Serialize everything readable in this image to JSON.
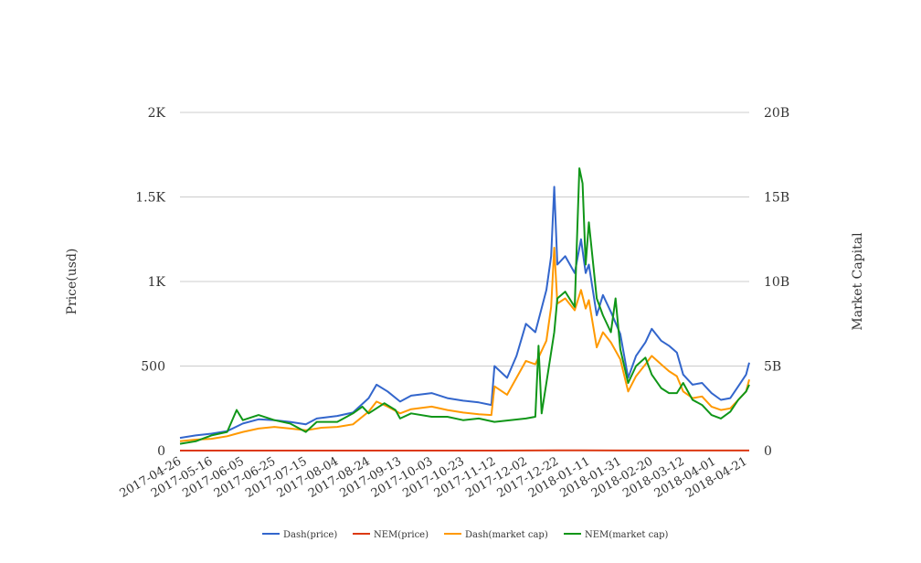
{
  "chart_data": {
    "type": "line",
    "title": "",
    "y_left_label": "Price(usd)",
    "y_right_label": "Market Capital",
    "y_left_range": [
      0,
      2000
    ],
    "y_left_ticks": [
      0,
      500,
      1000,
      1500,
      2000
    ],
    "y_left_tick_labels": [
      "0",
      "500",
      "1K",
      "1.5K",
      "2K"
    ],
    "y_right_range": [
      0,
      20000000000
    ],
    "y_right_ticks": [
      0,
      5000000000,
      10000000000,
      15000000000,
      20000000000
    ],
    "y_right_tick_labels": [
      "0",
      "5B",
      "10B",
      "15B",
      "20B"
    ],
    "x_range": [
      "2017-04-26",
      "2018-04-23"
    ],
    "x_tick_labels": [
      "2017-04-26",
      "2017-05-16",
      "2017-06-05",
      "2017-06-25",
      "2017-07-15",
      "2017-08-04",
      "2017-08-24",
      "2017-09-13",
      "2017-10-03",
      "2017-10-23",
      "2017-11-12",
      "2017-12-02",
      "2017-12-22",
      "2018-01-11",
      "2018-01-31",
      "2018-02-20",
      "2018-03-12",
      "2018-04-01",
      "2018-04-21"
    ],
    "grid": true,
    "legend_position": "bottom",
    "series": [
      {
        "name": "Dash(price)",
        "axis": "left",
        "color": "#3366cc",
        "points": [
          [
            "2017-04-26",
            75
          ],
          [
            "2017-05-06",
            90
          ],
          [
            "2017-05-16",
            100
          ],
          [
            "2017-05-26",
            115
          ],
          [
            "2017-06-05",
            160
          ],
          [
            "2017-06-15",
            185
          ],
          [
            "2017-06-25",
            180
          ],
          [
            "2017-07-05",
            170
          ],
          [
            "2017-07-15",
            155
          ],
          [
            "2017-07-22",
            190
          ],
          [
            "2017-08-04",
            205
          ],
          [
            "2017-08-14",
            225
          ],
          [
            "2017-08-24",
            310
          ],
          [
            "2017-08-29",
            390
          ],
          [
            "2017-09-05",
            350
          ],
          [
            "2017-09-13",
            290
          ],
          [
            "2017-09-20",
            325
          ],
          [
            "2017-10-03",
            340
          ],
          [
            "2017-10-13",
            310
          ],
          [
            "2017-10-23",
            295
          ],
          [
            "2017-11-02",
            285
          ],
          [
            "2017-11-10",
            270
          ],
          [
            "2017-11-12",
            500
          ],
          [
            "2017-11-20",
            430
          ],
          [
            "2017-11-26",
            560
          ],
          [
            "2017-12-02",
            750
          ],
          [
            "2017-12-08",
            700
          ],
          [
            "2017-12-15",
            950
          ],
          [
            "2017-12-18",
            1150
          ],
          [
            "2017-12-20",
            1560
          ],
          [
            "2017-12-22",
            1100
          ],
          [
            "2017-12-27",
            1150
          ],
          [
            "2018-01-02",
            1050
          ],
          [
            "2018-01-06",
            1250
          ],
          [
            "2018-01-09",
            1050
          ],
          [
            "2018-01-11",
            1100
          ],
          [
            "2018-01-16",
            800
          ],
          [
            "2018-01-20",
            920
          ],
          [
            "2018-01-25",
            820
          ],
          [
            "2018-01-31",
            690
          ],
          [
            "2018-02-05",
            430
          ],
          [
            "2018-02-10",
            560
          ],
          [
            "2018-02-16",
            640
          ],
          [
            "2018-02-20",
            720
          ],
          [
            "2018-02-26",
            650
          ],
          [
            "2018-03-03",
            620
          ],
          [
            "2018-03-08",
            580
          ],
          [
            "2018-03-12",
            450
          ],
          [
            "2018-03-18",
            390
          ],
          [
            "2018-03-24",
            400
          ],
          [
            "2018-03-30",
            340
          ],
          [
            "2018-04-05",
            300
          ],
          [
            "2018-04-11",
            310
          ],
          [
            "2018-04-16",
            380
          ],
          [
            "2018-04-21",
            450
          ],
          [
            "2018-04-23",
            520
          ]
        ]
      },
      {
        "name": "NEM(price)",
        "axis": "left",
        "color": "#dc3912",
        "points": [
          [
            "2017-04-26",
            0.02
          ],
          [
            "2017-06-05",
            0.25
          ],
          [
            "2017-08-04",
            0.22
          ],
          [
            "2017-09-13",
            0.25
          ],
          [
            "2017-11-12",
            0.2
          ],
          [
            "2017-12-22",
            0.9
          ],
          [
            "2018-01-06",
            1.6
          ],
          [
            "2018-01-31",
            0.8
          ],
          [
            "2018-03-12",
            0.3
          ],
          [
            "2018-04-23",
            0.36
          ]
        ]
      },
      {
        "name": "Dash(market cap)",
        "axis": "right",
        "color": "#ff9900",
        "points": [
          [
            "2017-04-26",
            550000000
          ],
          [
            "2017-05-06",
            650000000
          ],
          [
            "2017-05-16",
            700000000
          ],
          [
            "2017-05-26",
            850000000
          ],
          [
            "2017-06-05",
            1100000000
          ],
          [
            "2017-06-15",
            1300000000
          ],
          [
            "2017-06-25",
            1400000000
          ],
          [
            "2017-07-05",
            1300000000
          ],
          [
            "2017-07-15",
            1200000000
          ],
          [
            "2017-07-25",
            1350000000
          ],
          [
            "2017-08-04",
            1400000000
          ],
          [
            "2017-08-14",
            1550000000
          ],
          [
            "2017-08-24",
            2300000000
          ],
          [
            "2017-08-29",
            2900000000
          ],
          [
            "2017-09-05",
            2600000000
          ],
          [
            "2017-09-13",
            2200000000
          ],
          [
            "2017-09-20",
            2450000000
          ],
          [
            "2017-10-03",
            2600000000
          ],
          [
            "2017-10-13",
            2400000000
          ],
          [
            "2017-10-23",
            2250000000
          ],
          [
            "2017-11-02",
            2150000000
          ],
          [
            "2017-11-10",
            2100000000
          ],
          [
            "2017-11-12",
            3800000000
          ],
          [
            "2017-11-20",
            3300000000
          ],
          [
            "2017-11-26",
            4300000000
          ],
          [
            "2017-12-02",
            5300000000
          ],
          [
            "2017-12-08",
            5100000000
          ],
          [
            "2017-12-15",
            6500000000
          ],
          [
            "2017-12-18",
            8500000000
          ],
          [
            "2017-12-20",
            12000000000
          ],
          [
            "2017-12-22",
            8700000000
          ],
          [
            "2017-12-27",
            9000000000
          ],
          [
            "2018-01-02",
            8300000000
          ],
          [
            "2018-01-06",
            9500000000
          ],
          [
            "2018-01-09",
            8400000000
          ],
          [
            "2018-01-11",
            8900000000
          ],
          [
            "2018-01-16",
            6100000000
          ],
          [
            "2018-01-20",
            7000000000
          ],
          [
            "2018-01-25",
            6400000000
          ],
          [
            "2018-01-31",
            5400000000
          ],
          [
            "2018-02-05",
            3500000000
          ],
          [
            "2018-02-10",
            4400000000
          ],
          [
            "2018-02-16",
            5100000000
          ],
          [
            "2018-02-20",
            5600000000
          ],
          [
            "2018-02-26",
            5100000000
          ],
          [
            "2018-03-03",
            4700000000
          ],
          [
            "2018-03-08",
            4400000000
          ],
          [
            "2018-03-12",
            3500000000
          ],
          [
            "2018-03-18",
            3100000000
          ],
          [
            "2018-03-24",
            3200000000
          ],
          [
            "2018-03-30",
            2600000000
          ],
          [
            "2018-04-05",
            2400000000
          ],
          [
            "2018-04-11",
            2500000000
          ],
          [
            "2018-04-16",
            3000000000
          ],
          [
            "2018-04-21",
            3500000000
          ],
          [
            "2018-04-23",
            4200000000
          ]
        ]
      },
      {
        "name": "NEM(market cap)",
        "axis": "right",
        "color": "#109618",
        "points": [
          [
            "2017-04-26",
            400000000
          ],
          [
            "2017-05-06",
            550000000
          ],
          [
            "2017-05-16",
            900000000
          ],
          [
            "2017-05-26",
            1100000000
          ],
          [
            "2017-06-01",
            2400000000
          ],
          [
            "2017-06-05",
            1800000000
          ],
          [
            "2017-06-15",
            2100000000
          ],
          [
            "2017-06-25",
            1800000000
          ],
          [
            "2017-07-05",
            1600000000
          ],
          [
            "2017-07-15",
            1100000000
          ],
          [
            "2017-07-22",
            1700000000
          ],
          [
            "2017-08-04",
            1700000000
          ],
          [
            "2017-08-14",
            2200000000
          ],
          [
            "2017-08-20",
            2600000000
          ],
          [
            "2017-08-24",
            2200000000
          ],
          [
            "2017-09-03",
            2800000000
          ],
          [
            "2017-09-10",
            2400000000
          ],
          [
            "2017-09-13",
            1900000000
          ],
          [
            "2017-09-20",
            2200000000
          ],
          [
            "2017-10-03",
            2000000000
          ],
          [
            "2017-10-13",
            2000000000
          ],
          [
            "2017-10-23",
            1800000000
          ],
          [
            "2017-11-02",
            1900000000
          ],
          [
            "2017-11-12",
            1700000000
          ],
          [
            "2017-11-22",
            1800000000
          ],
          [
            "2017-12-02",
            1900000000
          ],
          [
            "2017-12-08",
            2000000000
          ],
          [
            "2017-12-10",
            6200000000
          ],
          [
            "2017-12-12",
            2200000000
          ],
          [
            "2017-12-15",
            4000000000
          ],
          [
            "2017-12-20",
            7000000000
          ],
          [
            "2017-12-22",
            9000000000
          ],
          [
            "2017-12-27",
            9400000000
          ],
          [
            "2018-01-02",
            8500000000
          ],
          [
            "2018-01-05",
            16700000000
          ],
          [
            "2018-01-07",
            15800000000
          ],
          [
            "2018-01-09",
            11000000000
          ],
          [
            "2018-01-11",
            13500000000
          ],
          [
            "2018-01-16",
            9000000000
          ],
          [
            "2018-01-20",
            8000000000
          ],
          [
            "2018-01-25",
            7000000000
          ],
          [
            "2018-01-28",
            9000000000
          ],
          [
            "2018-01-31",
            6000000000
          ],
          [
            "2018-02-05",
            4000000000
          ],
          [
            "2018-02-10",
            5000000000
          ],
          [
            "2018-02-16",
            5500000000
          ],
          [
            "2018-02-20",
            4500000000
          ],
          [
            "2018-02-26",
            3700000000
          ],
          [
            "2018-03-03",
            3400000000
          ],
          [
            "2018-03-08",
            3400000000
          ],
          [
            "2018-03-12",
            4000000000
          ],
          [
            "2018-03-18",
            3000000000
          ],
          [
            "2018-03-24",
            2700000000
          ],
          [
            "2018-03-30",
            2100000000
          ],
          [
            "2018-04-05",
            1900000000
          ],
          [
            "2018-04-11",
            2300000000
          ],
          [
            "2018-04-16",
            3000000000
          ],
          [
            "2018-04-21",
            3500000000
          ],
          [
            "2018-04-23",
            3900000000
          ]
        ]
      }
    ]
  }
}
